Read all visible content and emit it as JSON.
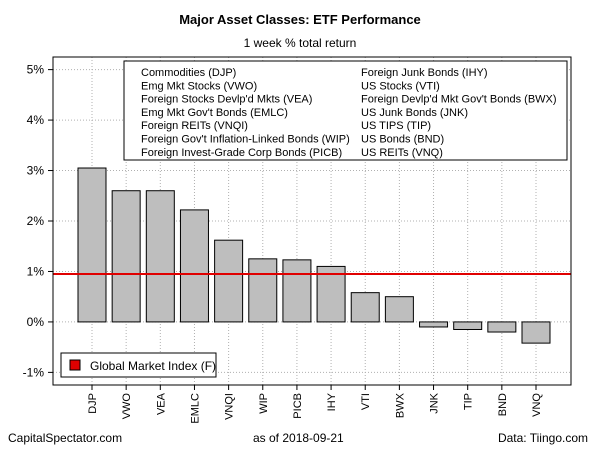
{
  "chart_data": {
    "type": "bar",
    "title": "Major Asset Classes: ETF Performance",
    "subtitle": "1 week % total return",
    "categories": [
      "DJP",
      "VWO",
      "VEA",
      "EMLC",
      "VNQI",
      "WIP",
      "PICB",
      "IHY",
      "VTI",
      "BWX",
      "JNK",
      "TIP",
      "BND",
      "VNQ"
    ],
    "values": [
      3.05,
      2.6,
      2.6,
      2.22,
      1.62,
      1.25,
      1.23,
      1.1,
      0.58,
      0.5,
      -0.1,
      -0.15,
      -0.2,
      -0.42
    ],
    "ylim": [
      -1.25,
      5.25
    ],
    "yticks": [
      -1,
      0,
      1,
      2,
      3,
      4,
      5
    ],
    "ytick_labels": [
      "-1%",
      "0%",
      "1%",
      "2%",
      "3%",
      "4%",
      "5%"
    ],
    "grid": true,
    "bar_color": "#bebebe",
    "reference_line": {
      "value": 0.95,
      "color": "#e00000",
      "label": "Global Market Index (F)"
    },
    "key": [
      [
        "Commodities (DJP)",
        "Foreign Junk Bonds (IHY)"
      ],
      [
        "Emg Mkt Stocks (VWO)",
        "US Stocks (VTI)"
      ],
      [
        "Foreign Stocks Devlp'd Mkts (VEA)",
        "Foreign Devlp'd Mkt Gov't Bonds (BWX)"
      ],
      [
        "Emg Mkt Gov't Bonds (EMLC)",
        "US Junk Bonds (JNK)"
      ],
      [
        "Foreign REITs (VNQI)",
        "US TIPS (TIP)"
      ],
      [
        "Foreign Gov't Inflation-Linked Bonds (WIP)",
        "US Bonds (BND)"
      ],
      [
        "Foreign Invest-Grade Corp Bonds (PICB)",
        "US REITs (VNQ)"
      ]
    ],
    "legend_position": "bottom-left"
  },
  "footer": {
    "left": "CapitalSpectator.com",
    "date": "as of   2018-09-21",
    "right": "Data: Tiingo.com"
  }
}
